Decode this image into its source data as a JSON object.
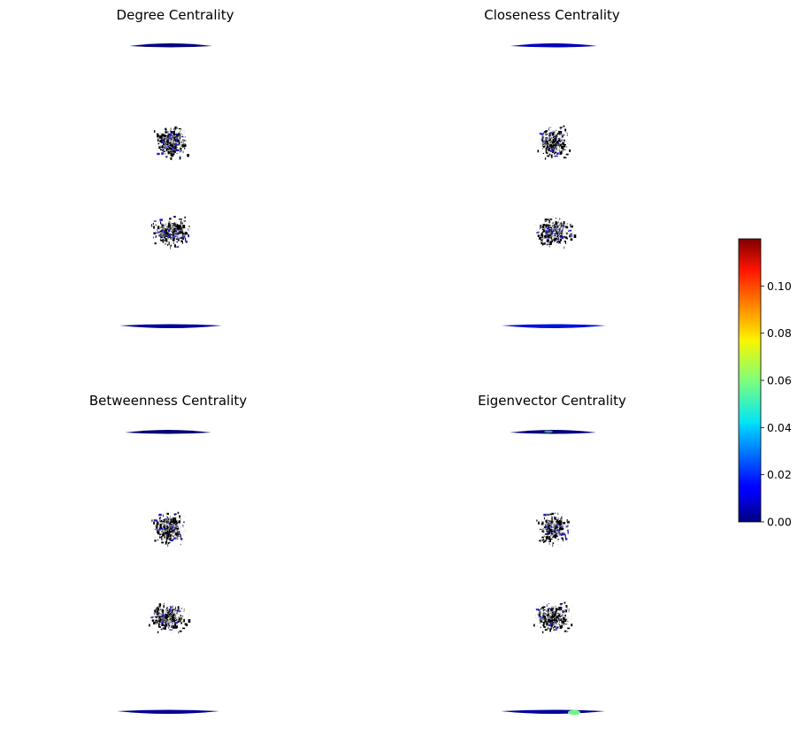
{
  "chart_data": {
    "type": "network",
    "panels": [
      {
        "title": "Degree Centrality",
        "node_colors": {
          "top_arc": "#00007a",
          "bottom_arc": "#00009a",
          "cluster_highlight": "#2020b8",
          "accent": null
        }
      },
      {
        "title": "Closeness Centrality",
        "node_colors": {
          "top_arc": "#0000b8",
          "bottom_arc": "#0010dc",
          "cluster_highlight": "#1c1cc8",
          "accent": null
        }
      },
      {
        "title": "Betweenness Centrality",
        "node_colors": {
          "top_arc": "#000072",
          "bottom_arc": "#000090",
          "cluster_highlight": "#2020b8",
          "accent": null
        }
      },
      {
        "title": "Eigenvector Centrality",
        "node_colors": {
          "top_arc": "#00007e",
          "bottom_arc": "#00009a",
          "cluster_highlight": "#2020b8",
          "accent": "#6ef586"
        }
      }
    ],
    "colorbar": {
      "colormap": "jet",
      "min": 0.0,
      "max": 0.12,
      "ticks": [
        0.0,
        0.02,
        0.04,
        0.06,
        0.08,
        0.1
      ],
      "tick_labels": [
        "0.00",
        "0.02",
        "0.04",
        "0.06",
        "0.08",
        "0.10"
      ]
    }
  }
}
